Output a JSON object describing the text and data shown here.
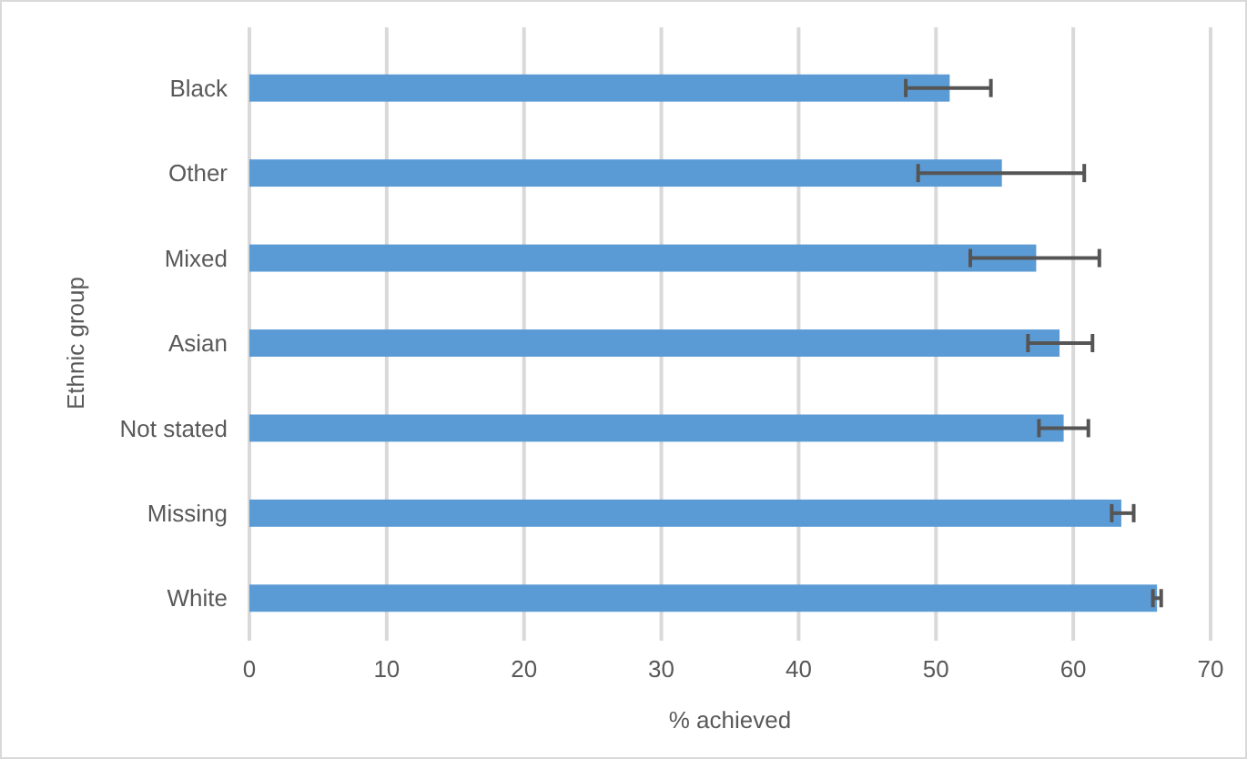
{
  "chart_data": {
    "type": "bar",
    "orientation": "horizontal",
    "xlabel": "% achieved",
    "ylabel": "Ethnic group",
    "categories": [
      "Black",
      "Other",
      "Mixed",
      "Asian",
      "Not stated",
      "Missing",
      "White"
    ],
    "values": [
      51.0,
      54.8,
      57.3,
      59.0,
      59.3,
      63.5,
      66.1
    ],
    "errors": [
      [
        47.8,
        54.0
      ],
      [
        48.7,
        60.8
      ],
      [
        52.5,
        61.9
      ],
      [
        56.7,
        61.4
      ],
      [
        57.5,
        61.1
      ],
      [
        62.8,
        64.4
      ],
      [
        65.8,
        66.4
      ]
    ],
    "color": "#5b9bd5",
    "xlim": [
      0,
      70
    ],
    "xticks": [
      0,
      10,
      20,
      30,
      40,
      50,
      60,
      70
    ],
    "grid": "x"
  }
}
